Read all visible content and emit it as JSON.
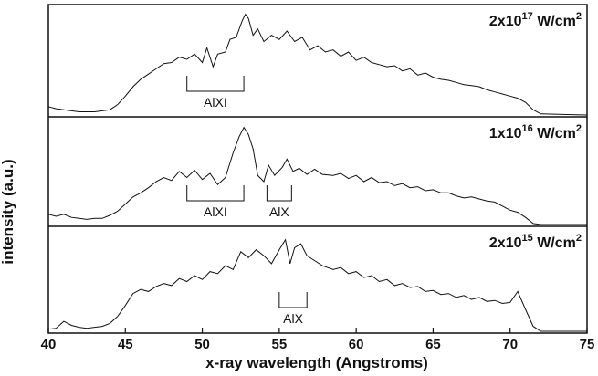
{
  "chart_data": {
    "type": "line",
    "xlabel": "x-ray wavelength (Angstroms)",
    "ylabel": "intensity (a.u.)",
    "xlim": [
      40,
      75
    ],
    "x_ticks": [
      "40",
      "45",
      "50",
      "55",
      "60",
      "65",
      "70",
      "75"
    ],
    "y_ticks_labeled": false,
    "grid": false,
    "panels": [
      {
        "label": {
          "base": "2x10",
          "exp": "17",
          "unit": " W/cm",
          "unit_exp": "2"
        },
        "ylim": [
          0,
          1
        ],
        "annotations": [
          {
            "label": "AlXI",
            "x_range": [
              49.0,
              52.7
            ]
          }
        ],
        "points": [
          [
            40.0,
            0.08
          ],
          [
            40.5,
            0.06
          ],
          [
            41.0,
            0.05
          ],
          [
            41.5,
            0.04
          ],
          [
            42.0,
            0.03
          ],
          [
            42.5,
            0.03
          ],
          [
            43.0,
            0.03
          ],
          [
            43.5,
            0.04
          ],
          [
            44.0,
            0.05
          ],
          [
            44.5,
            0.1
          ],
          [
            45.0,
            0.18
          ],
          [
            45.5,
            0.27
          ],
          [
            46.0,
            0.34
          ],
          [
            46.5,
            0.39
          ],
          [
            47.0,
            0.44
          ],
          [
            47.5,
            0.49
          ],
          [
            48.0,
            0.5
          ],
          [
            48.5,
            0.55
          ],
          [
            49.0,
            0.53
          ],
          [
            49.5,
            0.58
          ],
          [
            50.0,
            0.5
          ],
          [
            50.3,
            0.64
          ],
          [
            50.7,
            0.46
          ],
          [
            51.0,
            0.58
          ],
          [
            51.5,
            0.6
          ],
          [
            51.8,
            0.72
          ],
          [
            52.2,
            0.74
          ],
          [
            52.6,
            0.9
          ],
          [
            52.8,
            0.96
          ],
          [
            53.0,
            0.92
          ],
          [
            53.3,
            0.76
          ],
          [
            53.6,
            0.82
          ],
          [
            54.0,
            0.7
          ],
          [
            54.5,
            0.76
          ],
          [
            55.0,
            0.72
          ],
          [
            55.5,
            0.8
          ],
          [
            56.0,
            0.7
          ],
          [
            56.5,
            0.74
          ],
          [
            57.0,
            0.62
          ],
          [
            57.5,
            0.66
          ],
          [
            58.0,
            0.6
          ],
          [
            58.5,
            0.62
          ],
          [
            59.0,
            0.56
          ],
          [
            59.5,
            0.6
          ],
          [
            60.0,
            0.52
          ],
          [
            60.5,
            0.55
          ],
          [
            61.0,
            0.5
          ],
          [
            61.5,
            0.48
          ],
          [
            62.0,
            0.46
          ],
          [
            62.5,
            0.47
          ],
          [
            63.0,
            0.42
          ],
          [
            63.5,
            0.44
          ],
          [
            64.0,
            0.38
          ],
          [
            64.5,
            0.4
          ],
          [
            65.0,
            0.36
          ],
          [
            65.5,
            0.34
          ],
          [
            66.0,
            0.33
          ],
          [
            66.5,
            0.31
          ],
          [
            67.0,
            0.29
          ],
          [
            67.5,
            0.28
          ],
          [
            68.0,
            0.27
          ],
          [
            68.5,
            0.24
          ],
          [
            69.0,
            0.22
          ],
          [
            69.5,
            0.2
          ],
          [
            70.0,
            0.18
          ],
          [
            70.5,
            0.16
          ],
          [
            71.0,
            0.12
          ],
          [
            71.5,
            0.05
          ],
          [
            72.0,
            0.01
          ],
          [
            75.0,
            0.0
          ]
        ]
      },
      {
        "label": {
          "base": "1x10",
          "exp": "16",
          "unit": " W/cm",
          "unit_exp": "2"
        },
        "ylim": [
          0,
          1
        ],
        "annotations": [
          {
            "label": "AlXI",
            "x_range": [
              49.0,
              52.7
            ]
          },
          {
            "label": "AlX",
            "x_range": [
              54.2,
              55.8
            ]
          }
        ],
        "points": [
          [
            40.0,
            0.1
          ],
          [
            40.5,
            0.08
          ],
          [
            41.0,
            0.1
          ],
          [
            41.5,
            0.07
          ],
          [
            42.0,
            0.06
          ],
          [
            42.5,
            0.05
          ],
          [
            43.0,
            0.06
          ],
          [
            43.5,
            0.06
          ],
          [
            44.0,
            0.09
          ],
          [
            44.5,
            0.13
          ],
          [
            45.0,
            0.2
          ],
          [
            45.5,
            0.27
          ],
          [
            46.0,
            0.31
          ],
          [
            46.5,
            0.36
          ],
          [
            47.0,
            0.42
          ],
          [
            47.5,
            0.46
          ],
          [
            48.0,
            0.43
          ],
          [
            48.5,
            0.52
          ],
          [
            49.0,
            0.46
          ],
          [
            49.5,
            0.53
          ],
          [
            50.0,
            0.44
          ],
          [
            50.5,
            0.5
          ],
          [
            51.0,
            0.39
          ],
          [
            51.5,
            0.46
          ],
          [
            52.0,
            0.7
          ],
          [
            52.4,
            0.86
          ],
          [
            52.7,
            0.95
          ],
          [
            53.0,
            0.88
          ],
          [
            53.3,
            0.74
          ],
          [
            53.6,
            0.48
          ],
          [
            54.0,
            0.42
          ],
          [
            54.3,
            0.58
          ],
          [
            54.7,
            0.48
          ],
          [
            55.2,
            0.56
          ],
          [
            55.5,
            0.64
          ],
          [
            55.9,
            0.52
          ],
          [
            56.3,
            0.55
          ],
          [
            56.8,
            0.49
          ],
          [
            57.3,
            0.54
          ],
          [
            57.8,
            0.49
          ],
          [
            58.5,
            0.48
          ],
          [
            59.0,
            0.5
          ],
          [
            59.5,
            0.45
          ],
          [
            60.0,
            0.48
          ],
          [
            60.5,
            0.42
          ],
          [
            61.0,
            0.46
          ],
          [
            61.5,
            0.41
          ],
          [
            62.0,
            0.42
          ],
          [
            62.5,
            0.38
          ],
          [
            63.0,
            0.4
          ],
          [
            63.5,
            0.36
          ],
          [
            64.0,
            0.37
          ],
          [
            64.5,
            0.33
          ],
          [
            65.0,
            0.34
          ],
          [
            65.5,
            0.31
          ],
          [
            66.0,
            0.31
          ],
          [
            66.5,
            0.28
          ],
          [
            67.0,
            0.26
          ],
          [
            67.5,
            0.27
          ],
          [
            68.0,
            0.25
          ],
          [
            68.5,
            0.23
          ],
          [
            69.0,
            0.22
          ],
          [
            69.5,
            0.18
          ],
          [
            70.0,
            0.14
          ],
          [
            70.5,
            0.12
          ],
          [
            71.0,
            0.07
          ],
          [
            71.5,
            0.01
          ],
          [
            72.0,
            0.0
          ],
          [
            75.0,
            0.0
          ]
        ]
      },
      {
        "label": {
          "base": "2x10",
          "exp": "15",
          "unit": " W/cm",
          "unit_exp": "2"
        },
        "ylim": [
          0,
          1
        ],
        "annotations": [
          {
            "label": "AlX",
            "x_range": [
              55.0,
              56.8
            ]
          }
        ],
        "points": [
          [
            40.0,
            0.02
          ],
          [
            40.5,
            0.03
          ],
          [
            41.0,
            0.1
          ],
          [
            41.5,
            0.06
          ],
          [
            42.0,
            0.04
          ],
          [
            42.5,
            0.03
          ],
          [
            43.0,
            0.04
          ],
          [
            43.5,
            0.05
          ],
          [
            44.0,
            0.08
          ],
          [
            44.5,
            0.15
          ],
          [
            45.0,
            0.26
          ],
          [
            45.5,
            0.38
          ],
          [
            46.0,
            0.42
          ],
          [
            46.5,
            0.4
          ],
          [
            47.0,
            0.45
          ],
          [
            47.5,
            0.48
          ],
          [
            48.0,
            0.46
          ],
          [
            48.5,
            0.53
          ],
          [
            49.0,
            0.5
          ],
          [
            49.5,
            0.56
          ],
          [
            50.0,
            0.52
          ],
          [
            50.5,
            0.6
          ],
          [
            51.0,
            0.58
          ],
          [
            51.5,
            0.66
          ],
          [
            52.0,
            0.62
          ],
          [
            52.5,
            0.8
          ],
          [
            53.0,
            0.74
          ],
          [
            53.5,
            0.82
          ],
          [
            54.0,
            0.76
          ],
          [
            54.5,
            0.68
          ],
          [
            55.0,
            0.82
          ],
          [
            55.4,
            0.92
          ],
          [
            55.7,
            0.68
          ],
          [
            56.0,
            0.84
          ],
          [
            56.4,
            0.88
          ],
          [
            56.8,
            0.76
          ],
          [
            57.2,
            0.72
          ],
          [
            57.8,
            0.66
          ],
          [
            58.5,
            0.62
          ],
          [
            59.0,
            0.64
          ],
          [
            59.5,
            0.58
          ],
          [
            60.0,
            0.6
          ],
          [
            60.5,
            0.54
          ],
          [
            61.0,
            0.56
          ],
          [
            61.5,
            0.5
          ],
          [
            62.0,
            0.52
          ],
          [
            62.5,
            0.46
          ],
          [
            63.0,
            0.48
          ],
          [
            63.5,
            0.44
          ],
          [
            64.0,
            0.45
          ],
          [
            64.5,
            0.4
          ],
          [
            65.0,
            0.41
          ],
          [
            65.5,
            0.37
          ],
          [
            66.0,
            0.38
          ],
          [
            66.5,
            0.34
          ],
          [
            67.0,
            0.36
          ],
          [
            67.5,
            0.32
          ],
          [
            68.0,
            0.34
          ],
          [
            68.5,
            0.3
          ],
          [
            69.0,
            0.31
          ],
          [
            69.5,
            0.28
          ],
          [
            70.0,
            0.29
          ],
          [
            70.5,
            0.4
          ],
          [
            71.0,
            0.22
          ],
          [
            71.5,
            0.05
          ],
          [
            72.0,
            0.0
          ],
          [
            75.0,
            0.0
          ]
        ]
      }
    ]
  }
}
